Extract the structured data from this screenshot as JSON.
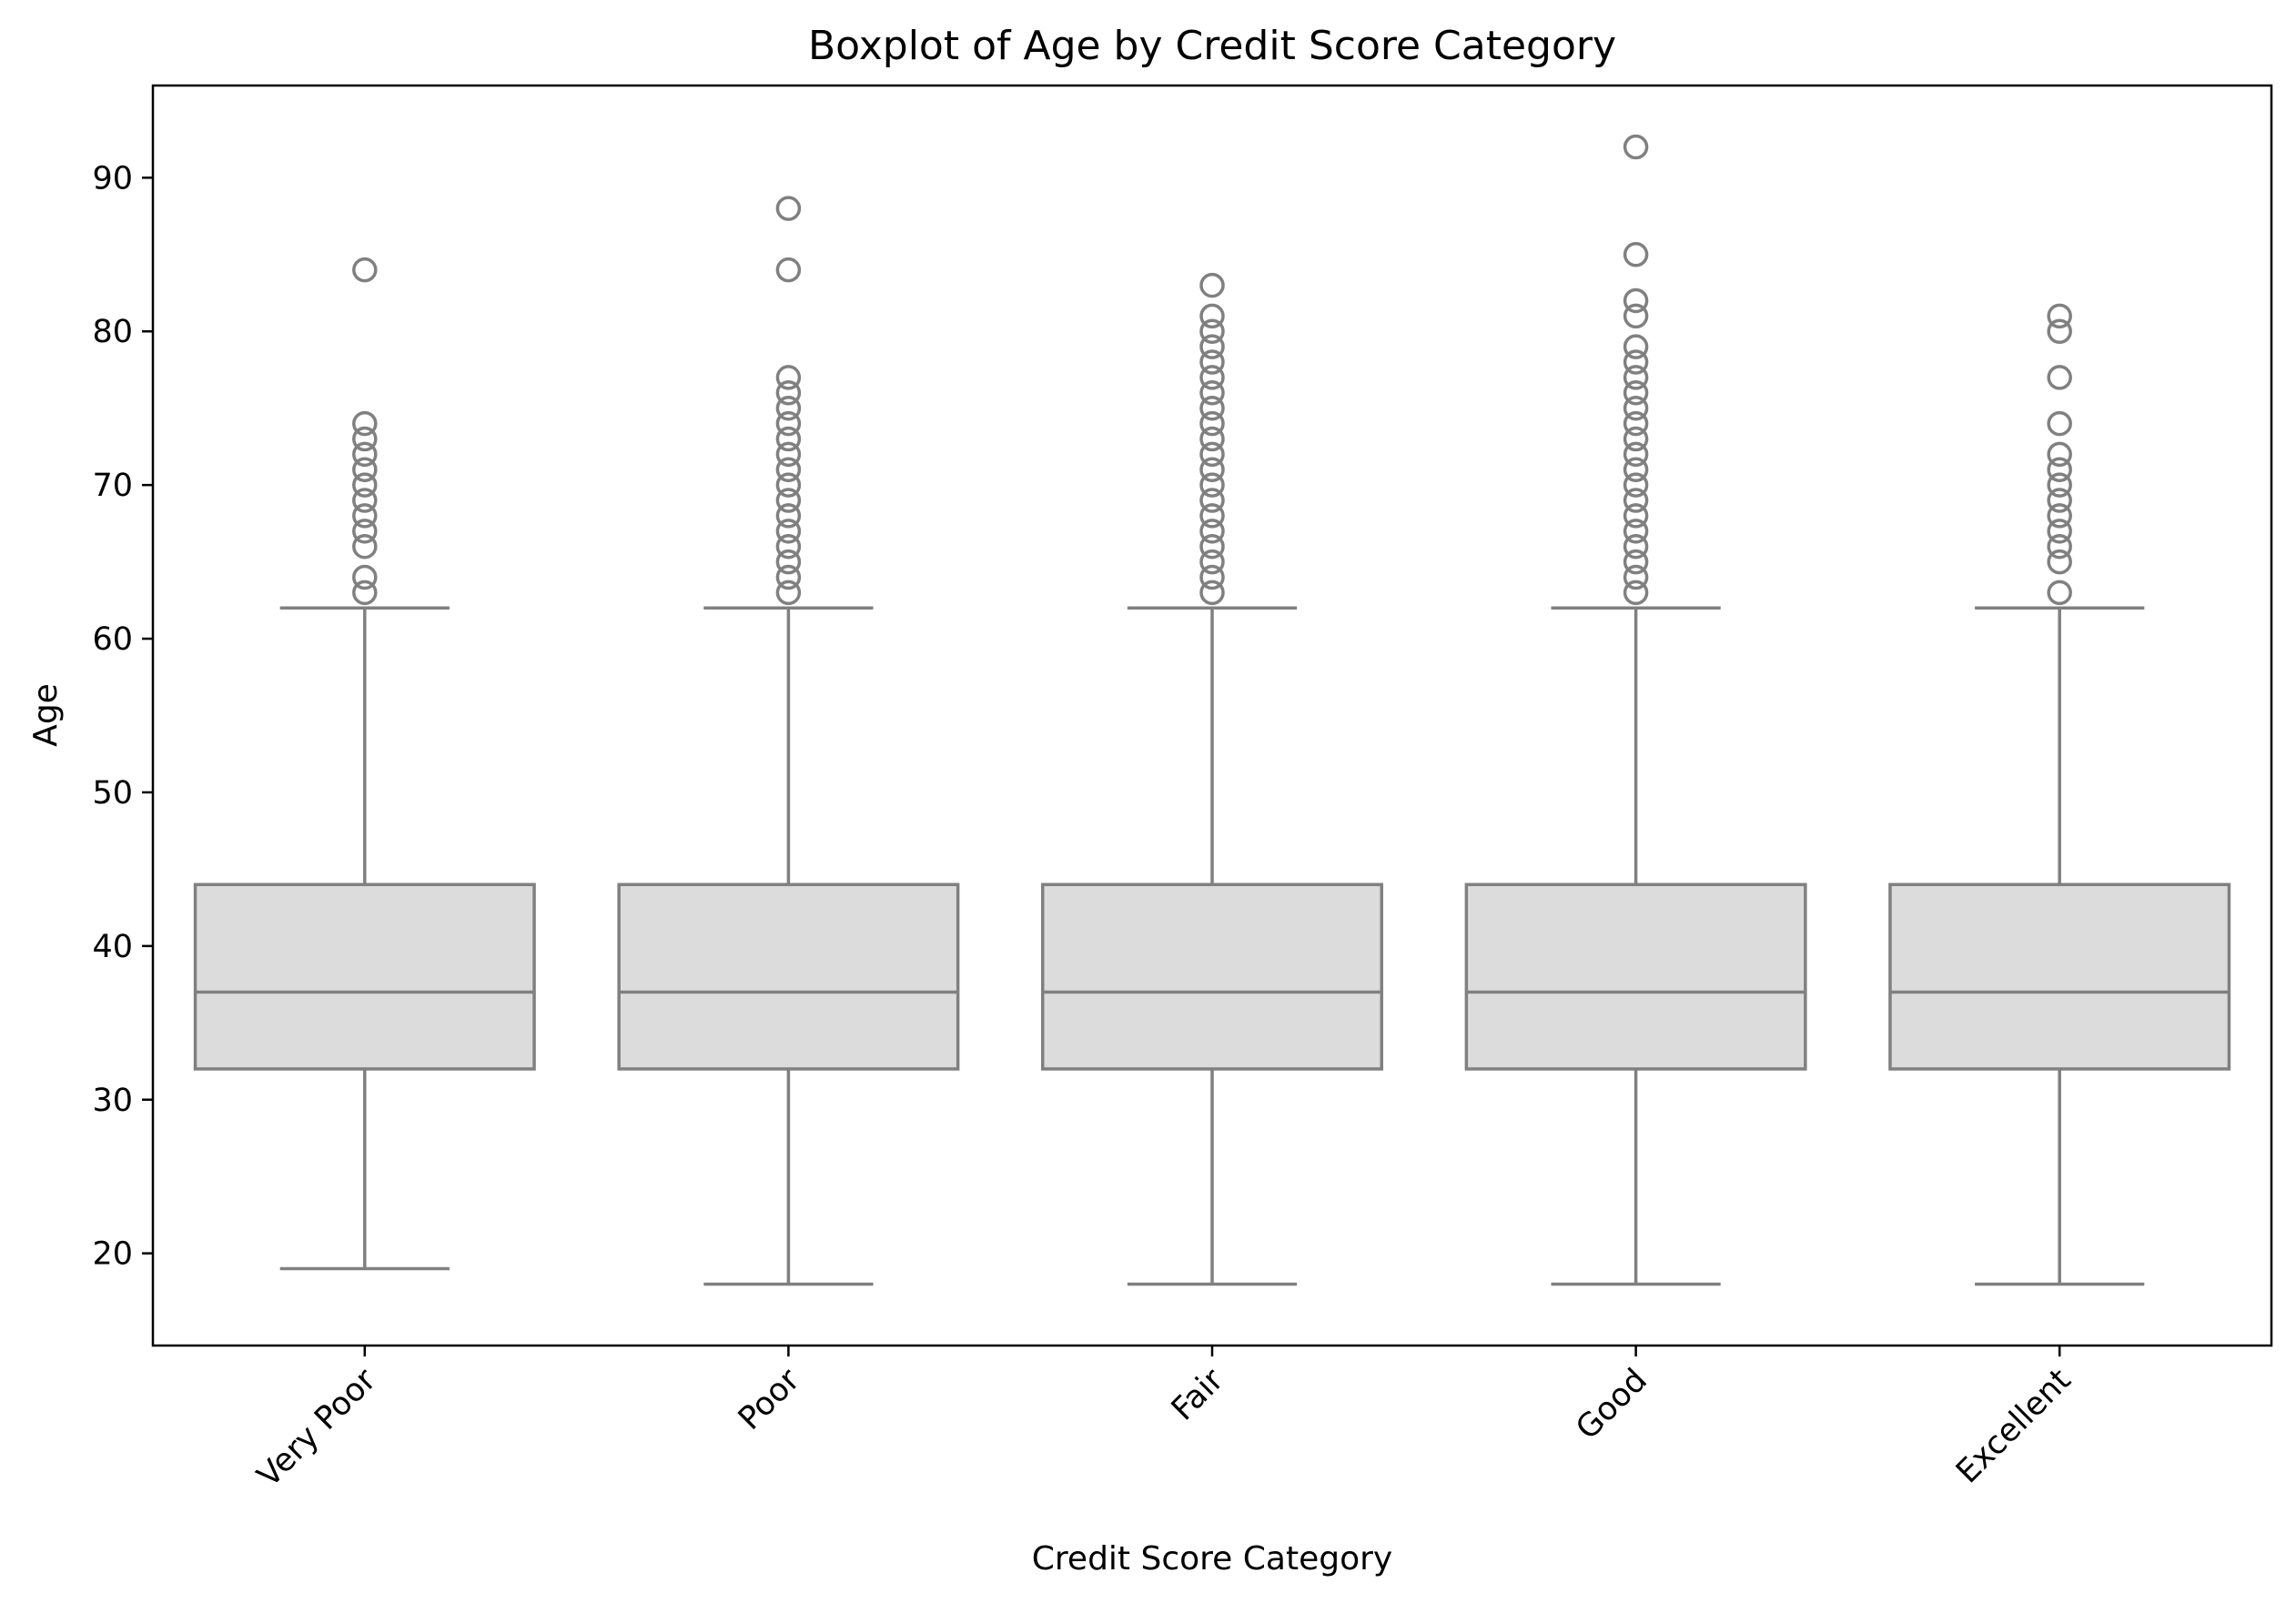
{
  "chart_data": {
    "type": "boxplot",
    "title": "Boxplot of Age by Credit Score Category",
    "xlabel": "Credit Score Category",
    "ylabel": "Age",
    "ylim": [
      14,
      96
    ],
    "yticks": [
      20,
      30,
      40,
      50,
      60,
      70,
      80,
      90
    ],
    "categories": [
      "Very Poor",
      "Poor",
      "Fair",
      "Good",
      "Excellent"
    ],
    "grid": false,
    "legend": "none",
    "colors": {
      "box_fill": "#dcdcdc",
      "line": "#808080",
      "axes": "#000000"
    },
    "boxes": [
      {
        "category": "Very Poor",
        "whisker_low": 19,
        "q1": 32,
        "median": 37,
        "q3": 44,
        "whisker_high": 62,
        "outliers": [
          63,
          64,
          66,
          67,
          68,
          69,
          70,
          71,
          72,
          73,
          74,
          84
        ]
      },
      {
        "category": "Poor",
        "whisker_low": 18,
        "q1": 32,
        "median": 37,
        "q3": 44,
        "whisker_high": 62,
        "outliers": [
          63,
          64,
          65,
          66,
          67,
          68,
          69,
          70,
          71,
          72,
          73,
          74,
          75,
          76,
          77,
          84,
          88
        ]
      },
      {
        "category": "Fair",
        "whisker_low": 18,
        "q1": 32,
        "median": 37,
        "q3": 44,
        "whisker_high": 62,
        "outliers": [
          63,
          64,
          65,
          66,
          67,
          68,
          69,
          70,
          71,
          72,
          73,
          74,
          75,
          76,
          77,
          78,
          79,
          80,
          81,
          83
        ]
      },
      {
        "category": "Good",
        "whisker_low": 18,
        "q1": 32,
        "median": 37,
        "q3": 44,
        "whisker_high": 62,
        "outliers": [
          63,
          64,
          65,
          66,
          67,
          68,
          69,
          70,
          71,
          72,
          73,
          74,
          75,
          76,
          77,
          78,
          79,
          81,
          82,
          85,
          92
        ]
      },
      {
        "category": "Excellent",
        "whisker_low": 18,
        "q1": 32,
        "median": 37,
        "q3": 44,
        "whisker_high": 62,
        "outliers": [
          63,
          65,
          66,
          67,
          68,
          69,
          70,
          71,
          72,
          74,
          77,
          80,
          81
        ]
      }
    ]
  }
}
